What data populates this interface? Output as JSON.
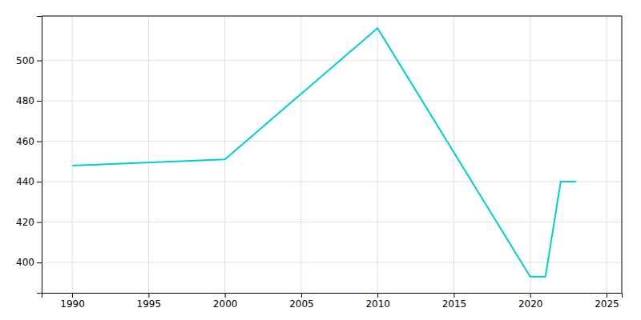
{
  "chart_data": {
    "type": "line",
    "x": [
      1990,
      2000,
      2010,
      2020,
      2021,
      2022,
      2023
    ],
    "values": [
      448,
      451,
      516,
      393,
      393,
      440,
      440
    ],
    "color": "#00CED1",
    "xlim": [
      1988,
      2026
    ],
    "ylim": [
      385,
      522
    ],
    "xticks": [
      1990,
      1995,
      2000,
      2005,
      2010,
      2015,
      2020,
      2025
    ],
    "yticks": [
      400,
      420,
      440,
      460,
      480,
      500
    ],
    "grid": true
  }
}
